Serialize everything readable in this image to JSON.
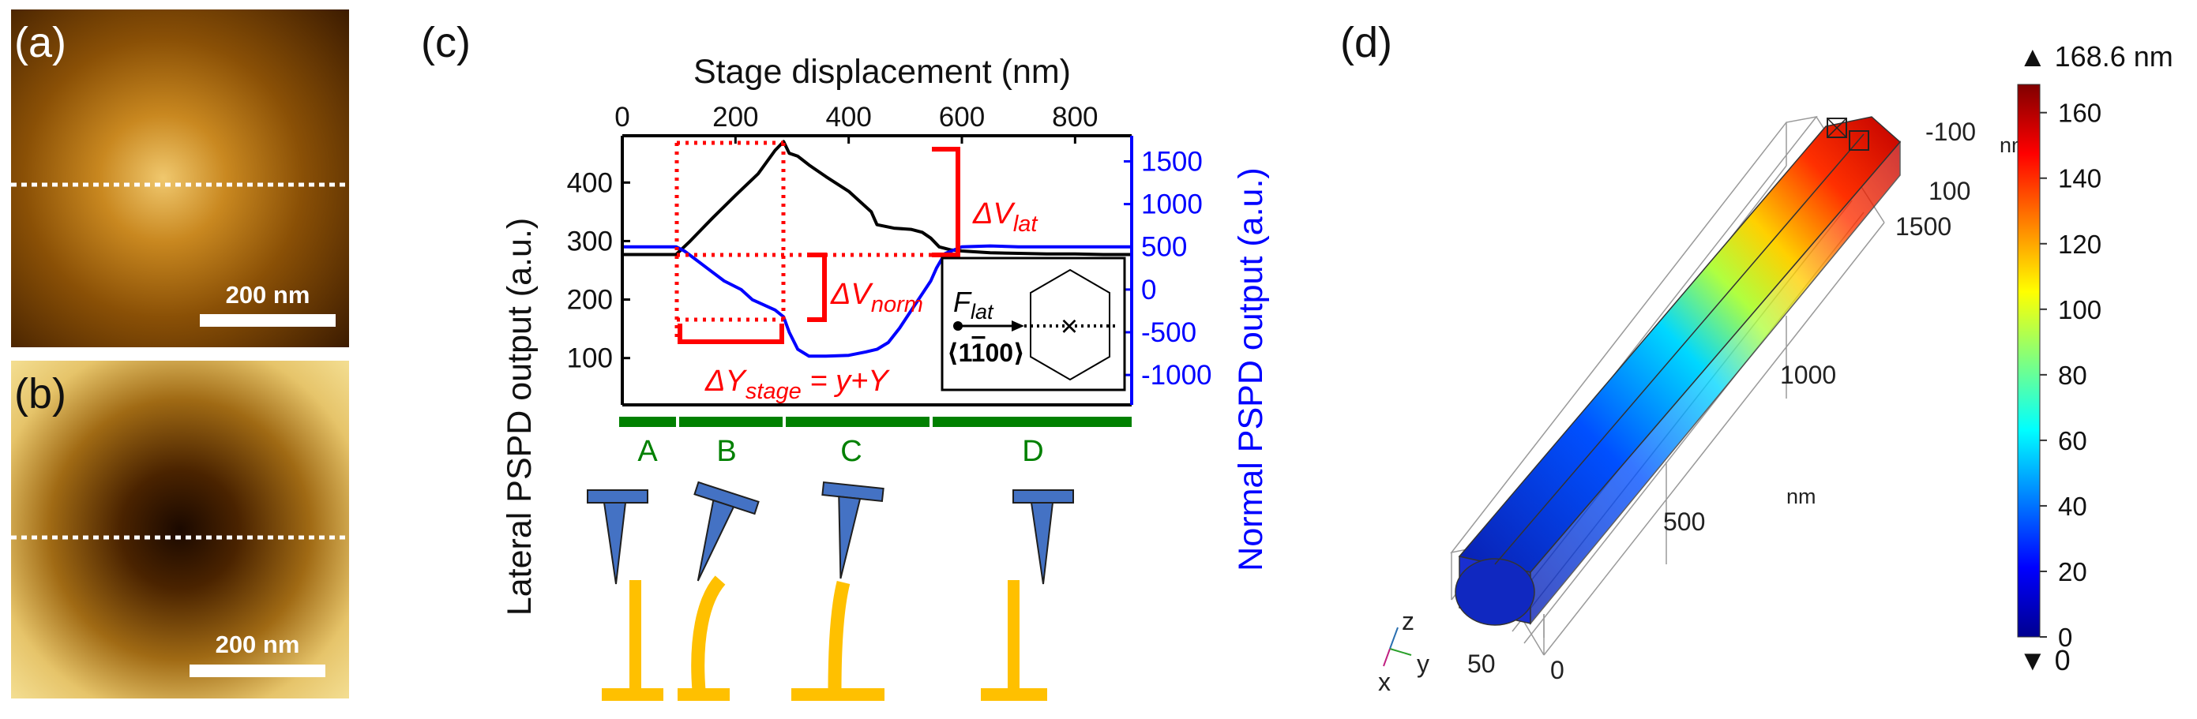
{
  "panels": {
    "a": {
      "label": "(a)",
      "scale_bar": "200 nm"
    },
    "b": {
      "label": "(b)",
      "scale_bar": "200 nm"
    },
    "c": {
      "label": "(c)"
    },
    "d": {
      "label": "(d)"
    }
  },
  "chart_data": {
    "type": "line",
    "title": "",
    "top_axis": {
      "label": "Stage displacement (nm)",
      "ticks": [
        "0",
        "200",
        "400",
        "600",
        "800"
      ],
      "range": [
        0,
        900
      ]
    },
    "left_axis": {
      "label": "Lateral PSPD output (a.u.)",
      "ticks": [
        "100",
        "200",
        "300",
        "400"
      ],
      "range": [
        20,
        480
      ]
    },
    "right_axis": {
      "label": "Normal PSPD output (a.u.)",
      "ticks": [
        "1500",
        "1000",
        "500",
        "0",
        "-500",
        "-1000"
      ],
      "range": [
        -1350,
        1800
      ]
    },
    "series": [
      {
        "name": "Lateral PSPD output",
        "color": "#000000",
        "axis": "left",
        "x": [
          0,
          50,
          95,
          120,
          160,
          200,
          240,
          270,
          285,
          295,
          310,
          330,
          360,
          400,
          440,
          450,
          480,
          510,
          530,
          545,
          560,
          580,
          600,
          650,
          700,
          750,
          800,
          850,
          900
        ],
        "y": [
          277,
          277,
          277,
          300,
          340,
          378,
          415,
          455,
          470,
          450,
          445,
          430,
          410,
          385,
          350,
          328,
          322,
          320,
          315,
          305,
          290,
          285,
          283,
          280,
          279,
          278,
          278,
          277,
          277
        ]
      },
      {
        "name": "Normal PSPD output",
        "color": "#0000ff",
        "axis": "right",
        "x": [
          0,
          50,
          95,
          110,
          150,
          180,
          210,
          230,
          250,
          270,
          285,
          295,
          310,
          330,
          360,
          400,
          430,
          450,
          470,
          490,
          510,
          530,
          545,
          555,
          570,
          600,
          650,
          700,
          750,
          800,
          850,
          900
        ],
        "y": [
          500,
          500,
          500,
          450,
          250,
          100,
          0,
          -120,
          -180,
          -240,
          -320,
          -500,
          -700,
          -780,
          -780,
          -770,
          -730,
          -700,
          -620,
          -450,
          -250,
          -50,
          100,
          250,
          420,
          500,
          510,
          500,
          500,
          500,
          500,
          500
        ]
      }
    ],
    "annotations": {
      "delta_v_lat": "ΔV",
      "delta_v_lat_sub": "lat",
      "delta_v_norm": "ΔV",
      "delta_v_norm_sub": "norm",
      "delta_y_stage": "ΔY",
      "delta_y_stage_sub": "stage",
      "delta_y_stage_rhs": " = y+Y",
      "force": "F",
      "force_sub": "lat",
      "direction_pre": "⟨1",
      "direction_bar": "1",
      "direction_post": "00⟩",
      "hexagon_marker": "×"
    },
    "phases": [
      "A",
      "B",
      "C",
      "D"
    ]
  },
  "panel_d": {
    "axes_labels": {
      "y_top": "-100",
      "y_top_unit": "nm",
      "y_mid": "100",
      "x_far": "1500",
      "x_mid": "1000",
      "x_unit": "nm",
      "x_near": "500",
      "z_small": "50",
      "y_zero": "0"
    },
    "triad": {
      "z": "z",
      "y": "y",
      "x": "x"
    },
    "colorbar": {
      "max_label": "▲ 168.6 nm",
      "min_label": "▼ 0",
      "ticks": [
        "160",
        "140",
        "120",
        "100",
        "80",
        "60",
        "40",
        "20",
        "0"
      ],
      "max_value": 168.6
    }
  }
}
